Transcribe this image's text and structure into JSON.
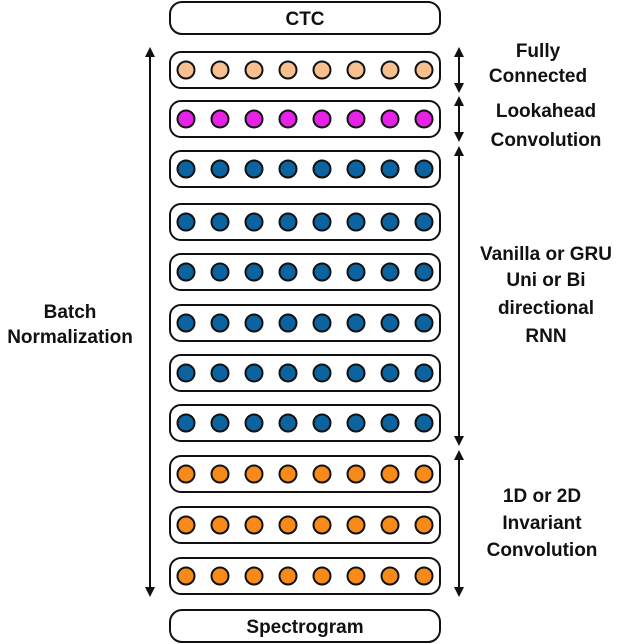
{
  "top_box": {
    "label": "CTC"
  },
  "bottom_box": {
    "label": "Spectrogram"
  },
  "left_annotation": {
    "lines": [
      "Batch",
      "Normalization"
    ]
  },
  "groups": [
    {
      "key": "fully_connected",
      "lines": [
        "Fully",
        "Connected"
      ],
      "rows": 1,
      "units_per_row": 8,
      "fill": "#F9C08F"
    },
    {
      "key": "lookahead",
      "lines": [
        "Lookahead",
        "Convolution"
      ],
      "rows": 1,
      "units_per_row": 8,
      "fill": "#E522E5"
    },
    {
      "key": "rnn",
      "lines": [
        "Vanilla or GRU",
        "Uni or Bi",
        "directional",
        "RNN"
      ],
      "rows": 6,
      "units_per_row": 8,
      "fill": "#0B63A0"
    },
    {
      "key": "conv",
      "lines": [
        "1D or 2D",
        "Invariant",
        "Convolution"
      ],
      "rows": 3,
      "units_per_row": 8,
      "fill": "#F88A1A"
    }
  ],
  "colors": {
    "stroke": "#111111",
    "background": "#ffffff"
  }
}
